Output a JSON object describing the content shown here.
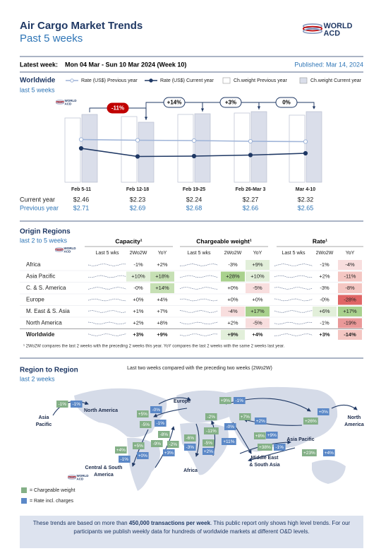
{
  "header": {
    "title": "Air Cargo Market Trends",
    "subtitle": "Past 5 weeks",
    "logo": [
      "WORLD",
      "ACD"
    ],
    "latest_week_label": "Latest week:",
    "latest_week": "Mon 04 Mar - Sun 10 Mar 2024 (Week 10)",
    "published": "Published: Mar 14, 2024"
  },
  "worldwide": {
    "title": "Worldwide",
    "subtitle": "last 5 weeks"
  },
  "chart_data": {
    "type": "bar",
    "categories": [
      "Feb 5-11",
      "Feb 12-18",
      "Feb 19-25",
      "Feb 26-Mar 3",
      "Mar 4-10"
    ],
    "series": [
      {
        "name": "Rate (US$) Previous year",
        "type": "line",
        "axis": "y2",
        "color": "#9fb4d8",
        "values": [
          2.71,
          2.69,
          2.68,
          2.66,
          2.65
        ],
        "value_labels": [
          "$2.71",
          "$2.69",
          "$2.68",
          "$2.66",
          "$2.65"
        ]
      },
      {
        "name": "Rate (US$) Current year",
        "type": "line",
        "axis": "y2",
        "color": "#1f3864",
        "values": [
          2.46,
          2.23,
          2.24,
          2.27,
          2.32
        ],
        "value_labels": [
          "$2.46",
          "$2.23",
          "$2.24",
          "$2.27",
          "$2.32"
        ]
      },
      {
        "name": "Ch.weight Previous year",
        "type": "bar",
        "color": "#ffffff",
        "values": [
          91,
          93,
          96,
          98,
          95
        ]
      },
      {
        "name": "Ch.weight Current year",
        "type": "bar",
        "color": "#dadeea",
        "values": [
          96,
          85,
          97,
          100,
          100
        ]
      }
    ],
    "row_labels": [
      "Current year",
      "Previous year"
    ],
    "annotations": [
      "-11%",
      "+14%",
      "+3%",
      "0%"
    ],
    "annotation_fills": [
      "#c00000",
      "#ffffff",
      "#ffffff",
      "#ffffff"
    ],
    "ylim": [
      0,
      100
    ],
    "y2lim": [
      1.5,
      3.5
    ]
  },
  "origin": {
    "title": "Origin Regions",
    "subtitle": "last 2 to 5 weeks",
    "groups": [
      "Capacity¹",
      "Chargeable weight¹",
      "Rate¹"
    ],
    "columns": [
      "Last 5 wks",
      "2Wo2W",
      "YoY"
    ],
    "rows": [
      {
        "region": "Africa",
        "cells": [
          "-1%",
          "+2%",
          "-3%",
          "+9%",
          "-1%",
          "-4%"
        ],
        "colors": [
          null,
          null,
          null,
          "#e2efda",
          null,
          "#f8dede"
        ]
      },
      {
        "region": "Asia Pacific",
        "cells": [
          "+10%",
          "+18%",
          "+28%",
          "+10%",
          "+2%",
          "-11%"
        ],
        "colors": [
          "#e2efda",
          "#c6e0b4",
          "#a9d18e",
          "#e2efda",
          null,
          "#f4c7c3"
        ]
      },
      {
        "region": "C. & S. America",
        "cells": [
          "-0%",
          "+14%",
          "+0%",
          "-5%",
          "-3%",
          "-8%"
        ],
        "colors": [
          null,
          "#c6e0b4",
          null,
          "#f8dede",
          null,
          "#f4c7c3"
        ]
      },
      {
        "region": "Europe",
        "cells": [
          "+0%",
          "+4%",
          "+0%",
          "+0%",
          "-0%",
          "-28%"
        ],
        "colors": [
          null,
          null,
          null,
          null,
          null,
          "#e06666"
        ]
      },
      {
        "region": "M. East & S. Asia",
        "cells": [
          "+1%",
          "+7%",
          "-4%",
          "+17%",
          "+6%",
          "+17%"
        ],
        "colors": [
          null,
          null,
          "#f8dede",
          "#a9d18e",
          "#e2efda",
          "#a9d18e"
        ]
      },
      {
        "region": "North America",
        "cells": [
          "+2%",
          "+8%",
          "+2%",
          "-5%",
          "-1%",
          "-19%"
        ],
        "colors": [
          null,
          null,
          null,
          "#f8dede",
          null,
          "#ea9999"
        ]
      },
      {
        "region": "Worldwide",
        "cells": [
          "+3%",
          "+9%",
          "+9%",
          "+4%",
          "+3%",
          "-14%"
        ],
        "colors": [
          null,
          null,
          "#e2efda",
          null,
          null,
          "#f4c7c3"
        ]
      }
    ],
    "footnote": "¹ 2Wo2W compares the last 2 weeks with the preceding 2 weeks this year. YoY compares the last 2 weeks with the same 2 weeks last year."
  },
  "region_to_region": {
    "title": "Region to Region",
    "subtitle": "last 2 weeks",
    "note": "Last two weeks compared with the preceding two weeks (2Wo2W)",
    "regions": [
      [
        "Asia",
        "Pacific"
      ],
      [
        "North America"
      ],
      [
        "Europe"
      ],
      [
        "North",
        "America"
      ],
      [
        "Asia Pacific"
      ],
      [
        "Central & South",
        "America"
      ],
      [
        "Africa"
      ],
      [
        "Middle East",
        "& South Asia"
      ]
    ],
    "colors": {
      "weight": "#84b087",
      "rate": "#5b88c7"
    },
    "legend": {
      "weight": "= Chargeable weight",
      "rate": "= Rate incl. charges"
    },
    "badges": [
      {
        "label": "-1%",
        "kind": "weight"
      },
      {
        "label": "-1%",
        "kind": "rate"
      },
      {
        "label": "+5%",
        "kind": "weight"
      },
      {
        "label": "-0%",
        "kind": "rate"
      },
      {
        "label": "-5%",
        "kind": "weight"
      },
      {
        "label": "-1%",
        "kind": "rate"
      },
      {
        "label": "+9%",
        "kind": "weight"
      },
      {
        "label": "-1%",
        "kind": "rate"
      },
      {
        "label": "-2%",
        "kind": "weight"
      },
      {
        "label": "+7%",
        "kind": "weight"
      },
      {
        "label": "+2%",
        "kind": "rate"
      },
      {
        "label": "-0%",
        "kind": "rate"
      },
      {
        "label": "-11%",
        "kind": "weight"
      },
      {
        "label": "+0%",
        "kind": "rate"
      },
      {
        "label": "+26%",
        "kind": "weight"
      },
      {
        "label": "-8%",
        "kind": "weight"
      },
      {
        "label": "-9%",
        "kind": "weight"
      },
      {
        "label": "-2%",
        "kind": "weight"
      },
      {
        "label": "+3%",
        "kind": "rate"
      },
      {
        "label": "-6%",
        "kind": "weight"
      },
      {
        "label": "-3%",
        "kind": "rate"
      },
      {
        "label": "-5%",
        "kind": "weight"
      },
      {
        "label": "+2%",
        "kind": "rate"
      },
      {
        "label": "+11%",
        "kind": "rate"
      },
      {
        "label": "+8%",
        "kind": "weight"
      },
      {
        "label": "+9%",
        "kind": "rate"
      },
      {
        "label": "+38%",
        "kind": "weight"
      },
      {
        "label": "-1%",
        "kind": "rate"
      },
      {
        "label": "+23%",
        "kind": "weight"
      },
      {
        "label": "+4%",
        "kind": "rate"
      },
      {
        "label": "+5%",
        "kind": "weight"
      },
      {
        "label": "+0%",
        "kind": "rate"
      },
      {
        "label": "+4%",
        "kind": "weight"
      },
      {
        "label": "-1%",
        "kind": "rate"
      }
    ]
  },
  "footer": [
    "These trends are based on more than ",
    "450,000 transactions per week",
    ". This public report only shows high level trends. For our participants we publish weekly data for hundreds of worldwide markets at different O&D levels."
  ]
}
